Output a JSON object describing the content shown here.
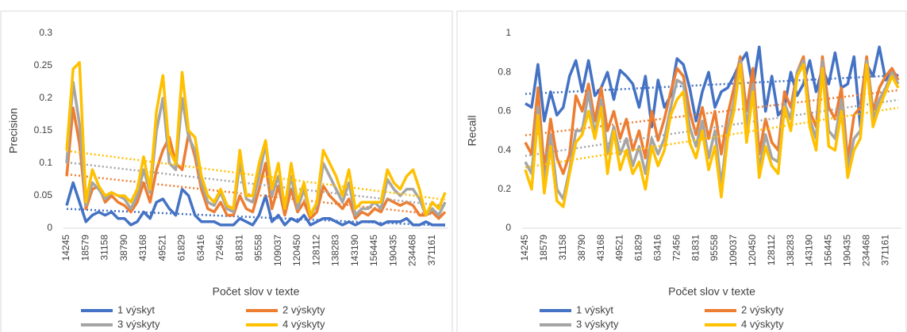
{
  "chart_data": [
    {
      "type": "line",
      "y_label": "Precision",
      "x_label": "Počet slov v texte",
      "grid": false,
      "trendline": "linear",
      "categories": [
        "14245",
        null,
        null,
        "18579",
        null,
        null,
        "31158",
        null,
        null,
        "38790",
        null,
        null,
        "43168",
        null,
        null,
        "49521",
        null,
        null,
        "61829",
        null,
        null,
        "63416",
        null,
        null,
        "72456",
        null,
        null,
        "81831",
        null,
        null,
        "95558",
        null,
        null,
        "109037",
        null,
        null,
        "120450",
        null,
        null,
        "128112",
        null,
        null,
        "138283",
        null,
        null,
        "143190",
        null,
        null,
        "156445",
        null,
        null,
        "190435",
        null,
        null,
        "234468",
        null,
        null,
        "371161",
        null,
        null
      ],
      "ylim": [
        0,
        0.3
      ],
      "yticks": [
        0,
        0.05,
        0.1,
        0.15,
        0.2,
        0.25,
        0.3
      ],
      "series": [
        {
          "name": "1 výskyt",
          "color": "#4472c4",
          "values": [
            0.035,
            0.07,
            0.04,
            0.01,
            0.02,
            0.025,
            0.02,
            0.025,
            0.015,
            0.015,
            0.005,
            0.01,
            0.025,
            0.015,
            0.04,
            0.045,
            0.03,
            0.02,
            0.06,
            0.05,
            0.02,
            0.01,
            0.01,
            0.01,
            0.005,
            0.005,
            0.005,
            0.015,
            0.01,
            0.005,
            0.02,
            0.05,
            0.01,
            0.02,
            0.005,
            0.015,
            0.01,
            0.02,
            0.005,
            0.01,
            0.015,
            0.015,
            0.01,
            0.005,
            0.01,
            0.005,
            0.01,
            0.01,
            0.01,
            0.005,
            0.01,
            0.01,
            0.01,
            0.015,
            0.005,
            0.005,
            0.01,
            0.005,
            0.005,
            0.005
          ]
        },
        {
          "name": "2 výskyty",
          "color": "#ed7d31",
          "values": [
            0.08,
            0.185,
            0.13,
            0.03,
            0.06,
            0.065,
            0.04,
            0.05,
            0.04,
            0.035,
            0.025,
            0.04,
            0.07,
            0.04,
            0.09,
            0.12,
            0.14,
            0.1,
            0.09,
            0.145,
            0.11,
            0.06,
            0.03,
            0.025,
            0.04,
            0.02,
            0.02,
            0.05,
            0.03,
            0.025,
            0.06,
            0.1,
            0.03,
            0.065,
            0.02,
            0.06,
            0.025,
            0.04,
            0.015,
            0.025,
            0.065,
            0.05,
            0.04,
            0.03,
            0.045,
            0.015,
            0.025,
            0.02,
            0.03,
            0.025,
            0.045,
            0.04,
            0.035,
            0.04,
            0.035,
            0.02,
            0.02,
            0.025,
            0.015,
            0.025
          ]
        },
        {
          "name": "3 výskyty",
          "color": "#a5a5a5",
          "values": [
            0.1,
            0.225,
            0.16,
            0.035,
            0.07,
            0.06,
            0.045,
            0.055,
            0.05,
            0.045,
            0.03,
            0.05,
            0.09,
            0.055,
            0.15,
            0.2,
            0.1,
            0.09,
            0.2,
            0.14,
            0.12,
            0.07,
            0.04,
            0.035,
            0.055,
            0.03,
            0.025,
            0.1,
            0.045,
            0.04,
            0.08,
            0.13,
            0.05,
            0.08,
            0.03,
            0.08,
            0.03,
            0.06,
            0.02,
            0.035,
            0.1,
            0.08,
            0.06,
            0.04,
            0.07,
            0.02,
            0.03,
            0.03,
            0.04,
            0.03,
            0.075,
            0.06,
            0.05,
            0.06,
            0.06,
            0.045,
            0.02,
            0.03,
            0.02,
            0.04
          ]
        },
        {
          "name": "4 výskyty",
          "color": "#ffc000",
          "values": [
            0.12,
            0.245,
            0.255,
            0.04,
            0.09,
            0.065,
            0.05,
            0.055,
            0.05,
            0.05,
            0.04,
            0.06,
            0.11,
            0.06,
            0.18,
            0.235,
            0.12,
            0.1,
            0.24,
            0.15,
            0.14,
            0.08,
            0.05,
            0.04,
            0.06,
            0.035,
            0.03,
            0.12,
            0.05,
            0.05,
            0.1,
            0.135,
            0.06,
            0.1,
            0.03,
            0.1,
            0.04,
            0.07,
            0.02,
            0.04,
            0.12,
            0.1,
            0.08,
            0.05,
            0.09,
            0.03,
            0.04,
            0.04,
            0.04,
            0.04,
            0.09,
            0.07,
            0.06,
            0.08,
            0.09,
            0.06,
            0.02,
            0.04,
            0.03,
            0.055
          ]
        }
      ]
    },
    {
      "type": "line",
      "y_label": "Recall",
      "x_label": "Počet slov v texte",
      "grid": false,
      "trendline": "linear",
      "categories": [
        "14245",
        null,
        null,
        "18579",
        null,
        null,
        "31158",
        null,
        null,
        "38790",
        null,
        null,
        "43168",
        null,
        null,
        "49521",
        null,
        null,
        "61829",
        null,
        null,
        "63416",
        null,
        null,
        "72456",
        null,
        null,
        "81831",
        null,
        null,
        "95558",
        null,
        null,
        "109037",
        null,
        null,
        "120450",
        null,
        null,
        "128112",
        null,
        null,
        "138283",
        null,
        null,
        "143190",
        null,
        null,
        "156445",
        null,
        null,
        "190435",
        null,
        null,
        "234468",
        null,
        null,
        "371161",
        null,
        null
      ],
      "ylim": [
        0,
        1
      ],
      "yticks": [
        0,
        0.2,
        0.4,
        0.6,
        0.8,
        1
      ],
      "series": [
        {
          "name": "1 výskyt",
          "color": "#4472c4",
          "values": [
            0.64,
            0.62,
            0.84,
            0.55,
            0.7,
            0.58,
            0.62,
            0.78,
            0.86,
            0.7,
            0.86,
            0.68,
            0.72,
            0.8,
            0.66,
            0.81,
            0.78,
            0.74,
            0.62,
            0.78,
            0.52,
            0.76,
            0.62,
            0.68,
            0.87,
            0.84,
            0.72,
            0.55,
            0.7,
            0.8,
            0.62,
            0.7,
            0.72,
            0.78,
            0.85,
            0.9,
            0.72,
            0.93,
            0.6,
            0.78,
            0.58,
            0.62,
            0.8,
            0.68,
            0.74,
            0.86,
            0.7,
            0.82,
            0.74,
            0.9,
            0.72,
            0.74,
            0.88,
            0.52,
            0.84,
            0.78,
            0.93,
            0.76,
            0.8,
            0.78
          ]
        },
        {
          "name": "2 výskyty",
          "color": "#ed7d31",
          "values": [
            0.44,
            0.38,
            0.72,
            0.3,
            0.56,
            0.36,
            0.28,
            0.38,
            0.68,
            0.6,
            0.74,
            0.55,
            0.72,
            0.5,
            0.6,
            0.46,
            0.56,
            0.4,
            0.5,
            0.36,
            0.6,
            0.45,
            0.56,
            0.7,
            0.82,
            0.78,
            0.6,
            0.48,
            0.62,
            0.46,
            0.6,
            0.38,
            0.58,
            0.72,
            0.88,
            0.6,
            0.82,
            0.38,
            0.56,
            0.44,
            0.4,
            0.7,
            0.62,
            0.8,
            0.88,
            0.6,
            0.52,
            0.88,
            0.62,
            0.56,
            0.72,
            0.35,
            0.58,
            0.62,
            0.88,
            0.6,
            0.72,
            0.78,
            0.82,
            0.76
          ]
        },
        {
          "name": "3 výskyty",
          "color": "#a5a5a5",
          "values": [
            0.34,
            0.28,
            0.62,
            0.22,
            0.48,
            0.2,
            0.15,
            0.3,
            0.5,
            0.5,
            0.7,
            0.48,
            0.66,
            0.38,
            0.52,
            0.38,
            0.46,
            0.32,
            0.42,
            0.28,
            0.46,
            0.38,
            0.46,
            0.62,
            0.76,
            0.74,
            0.52,
            0.42,
            0.55,
            0.36,
            0.5,
            0.22,
            0.5,
            0.65,
            0.86,
            0.52,
            0.74,
            0.3,
            0.48,
            0.36,
            0.34,
            0.64,
            0.56,
            0.8,
            0.86,
            0.56,
            0.46,
            0.86,
            0.5,
            0.46,
            0.66,
            0.3,
            0.46,
            0.5,
            0.86,
            0.56,
            0.66,
            0.72,
            0.8,
            0.74
          ]
        },
        {
          "name": "4 výskyty",
          "color": "#ffc000",
          "values": [
            0.3,
            0.2,
            0.58,
            0.18,
            0.42,
            0.14,
            0.11,
            0.28,
            0.44,
            0.48,
            0.6,
            0.46,
            0.62,
            0.28,
            0.5,
            0.3,
            0.4,
            0.28,
            0.34,
            0.2,
            0.42,
            0.32,
            0.4,
            0.58,
            0.66,
            0.7,
            0.44,
            0.36,
            0.5,
            0.3,
            0.42,
            0.16,
            0.46,
            0.6,
            0.84,
            0.44,
            0.7,
            0.26,
            0.42,
            0.32,
            0.28,
            0.62,
            0.5,
            0.78,
            0.84,
            0.52,
            0.4,
            0.82,
            0.42,
            0.4,
            0.6,
            0.26,
            0.4,
            0.46,
            0.84,
            0.52,
            0.62,
            0.7,
            0.78,
            0.72
          ]
        }
      ]
    }
  ]
}
